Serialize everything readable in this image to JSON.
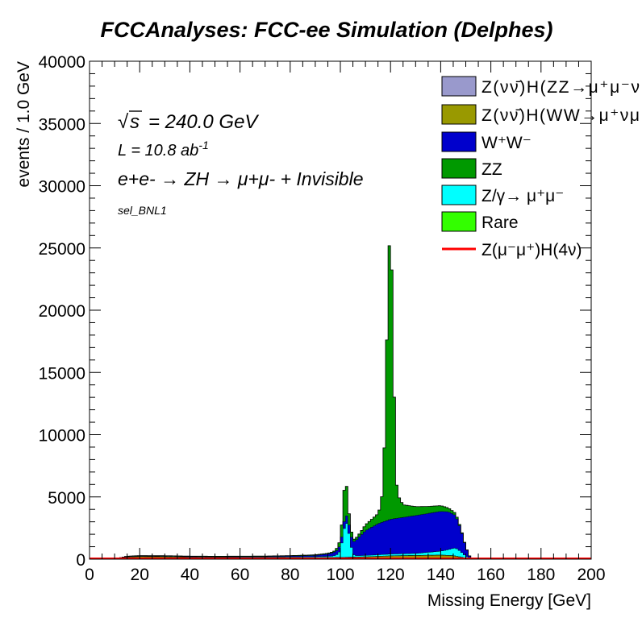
{
  "chart_data": {
    "type": "bar",
    "stacked": true,
    "title": "FCCAnalyses: FCC-ee Simulation (Delphes)",
    "xlabel": "Missing Energy [GeV]",
    "ylabel": "events / 1.0 GeV",
    "xlim": [
      0,
      200
    ],
    "ylim": [
      0,
      40000
    ],
    "bin_width": 1.0,
    "x_ticks": [
      "0",
      "20",
      "40",
      "60",
      "80",
      "100",
      "120",
      "140",
      "160",
      "180",
      "200"
    ],
    "y_ticks": [
      "0",
      "5000",
      "10000",
      "15000",
      "20000",
      "25000",
      "30000",
      "35000",
      "40000"
    ],
    "annotations": {
      "sqrt_s_symbol": "s",
      "sqrt_s_value": "= 240.0 GeV",
      "lumi": "L = 10.8 ab",
      "lumi_exp": "-1",
      "process": "e+e- → ZH → μ+μ- + Invisible",
      "selection": "sel_BNL1"
    },
    "legend_position": "top-right",
    "legend": [
      {
        "label": "Z(νν̄)H(ZZ→μ⁺μ⁻ν",
        "color": "#9999cc",
        "kind": "box"
      },
      {
        "label": "Z(νν̄)H(WW→μ⁺νμ",
        "color": "#999900",
        "kind": "box"
      },
      {
        "label": "W⁺W⁻",
        "color": "#0000cc",
        "kind": "box"
      },
      {
        "label": "ZZ",
        "color": "#009900",
        "kind": "box"
      },
      {
        "label": "Z/γ→ μ⁺μ⁻",
        "color": "#00ffff",
        "kind": "box"
      },
      {
        "label": "Rare",
        "color": "#33ff00",
        "kind": "box"
      },
      {
        "label": "Z(μ⁻μ⁺)H(4ν)",
        "color": "#ff0000",
        "kind": "line"
      }
    ],
    "series": [
      {
        "name": "Rare",
        "color": "#33ff00",
        "points": [
          [
            0,
            0
          ],
          [
            10,
            0
          ],
          [
            15,
            20
          ],
          [
            20,
            30
          ],
          [
            60,
            30
          ],
          [
            100,
            40
          ],
          [
            110,
            40
          ],
          [
            120,
            60
          ],
          [
            140,
            80
          ],
          [
            150,
            40
          ],
          [
            155,
            0
          ],
          [
            200,
            0
          ]
        ]
      },
      {
        "name": "Z(νν̄)H(WW→μ⁺νμ",
        "color": "#999900",
        "points": [
          [
            0,
            0
          ],
          [
            10,
            0
          ],
          [
            15,
            150
          ],
          [
            20,
            180
          ],
          [
            30,
            170
          ],
          [
            40,
            130
          ],
          [
            50,
            110
          ],
          [
            60,
            100
          ],
          [
            70,
            90
          ],
          [
            80,
            90
          ],
          [
            90,
            90
          ],
          [
            100,
            100
          ],
          [
            105,
            120
          ],
          [
            110,
            150
          ],
          [
            115,
            180
          ],
          [
            120,
            210
          ],
          [
            130,
            230
          ],
          [
            140,
            250
          ],
          [
            145,
            230
          ],
          [
            150,
            60
          ],
          [
            152,
            0
          ],
          [
            200,
            0
          ]
        ]
      },
      {
        "name": "Z(νν̄)H(ZZ→μ⁺μ⁻ν",
        "color": "#9999cc",
        "points": [
          [
            0,
            0
          ],
          [
            10,
            0
          ],
          [
            15,
            20
          ],
          [
            60,
            20
          ],
          [
            100,
            20
          ],
          [
            120,
            20
          ],
          [
            140,
            20
          ],
          [
            150,
            10
          ],
          [
            152,
            0
          ],
          [
            200,
            0
          ]
        ]
      },
      {
        "name": "Z/γ→ μ⁺μ⁻",
        "color": "#00ffff",
        "points": [
          [
            0,
            0
          ],
          [
            10,
            0
          ],
          [
            15,
            30
          ],
          [
            40,
            30
          ],
          [
            70,
            40
          ],
          [
            90,
            60
          ],
          [
            97,
            100
          ],
          [
            99,
            250
          ],
          [
            100,
            600
          ],
          [
            101,
            1700
          ],
          [
            102,
            2900
          ],
          [
            103,
            2500
          ],
          [
            104,
            1300
          ],
          [
            105,
            250
          ],
          [
            106,
            100
          ],
          [
            110,
            100
          ],
          [
            115,
            110
          ],
          [
            120,
            130
          ],
          [
            130,
            150
          ],
          [
            140,
            300
          ],
          [
            143,
            450
          ],
          [
            146,
            650
          ],
          [
            148,
            450
          ],
          [
            150,
            150
          ],
          [
            152,
            0
          ],
          [
            200,
            0
          ]
        ]
      },
      {
        "name": "W⁺W⁻",
        "color": "#0000cc",
        "points": [
          [
            0,
            0
          ],
          [
            10,
            0
          ],
          [
            15,
            10
          ],
          [
            50,
            20
          ],
          [
            70,
            40
          ],
          [
            80,
            60
          ],
          [
            90,
            100
          ],
          [
            95,
            180
          ],
          [
            98,
            300
          ],
          [
            100,
            450
          ],
          [
            102,
            600
          ],
          [
            104,
            700
          ],
          [
            106,
            1200
          ],
          [
            108,
            1600
          ],
          [
            110,
            2000
          ],
          [
            115,
            2500
          ],
          [
            120,
            2800
          ],
          [
            130,
            3050
          ],
          [
            140,
            3200
          ],
          [
            143,
            3050
          ],
          [
            146,
            2600
          ],
          [
            148,
            1800
          ],
          [
            150,
            700
          ],
          [
            152,
            0
          ],
          [
            200,
            0
          ]
        ]
      },
      {
        "name": "ZZ",
        "color": "#009900",
        "points": [
          [
            0,
            0
          ],
          [
            10,
            0
          ],
          [
            15,
            10
          ],
          [
            80,
            30
          ],
          [
            90,
            40
          ],
          [
            95,
            50
          ],
          [
            98,
            80
          ],
          [
            100,
            400
          ],
          [
            101,
            1500
          ],
          [
            102,
            3500
          ],
          [
            103,
            1200
          ],
          [
            104,
            600
          ],
          [
            105,
            200
          ],
          [
            106,
            150
          ],
          [
            108,
            250
          ],
          [
            110,
            450
          ],
          [
            113,
            650
          ],
          [
            115,
            800
          ],
          [
            116,
            1300
          ],
          [
            117,
            2800
          ],
          [
            118,
            9000
          ],
          [
            119,
            20000
          ],
          [
            120,
            24000
          ],
          [
            121,
            16000
          ],
          [
            122,
            3500
          ],
          [
            123,
            1800
          ],
          [
            125,
            1000
          ],
          [
            130,
            700
          ],
          [
            135,
            550
          ],
          [
            140,
            450
          ],
          [
            143,
            300
          ],
          [
            146,
            150
          ],
          [
            148,
            60
          ],
          [
            150,
            20
          ],
          [
            152,
            0
          ],
          [
            200,
            0
          ]
        ]
      }
    ],
    "signal_line": {
      "name": "Z(μ⁻μ⁺)H(4ν)",
      "color": "#ff0000",
      "value": 0
    }
  }
}
